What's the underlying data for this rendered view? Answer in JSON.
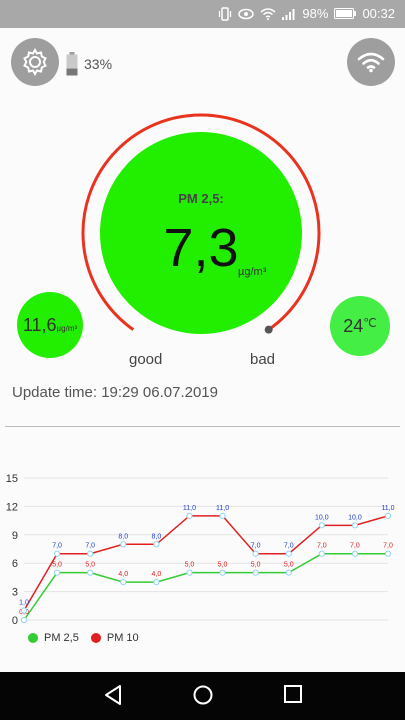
{
  "statusbar": {
    "battery": "98%",
    "time": "00:32"
  },
  "device": {
    "battery_percent": "33%",
    "battery_level": 0.33
  },
  "gauge": {
    "title": "PM 2,5:",
    "value": "7,3",
    "unit": "µg/m³",
    "good_label": "good",
    "bad_label": "bad",
    "main_color": "#22ee00",
    "arc_color": "#e8331f"
  },
  "pm10": {
    "value": "11,6",
    "unit": "µg/m³",
    "color": "#22ee00"
  },
  "temperature": {
    "value": "24",
    "unit": "℃",
    "color": "#44ee44"
  },
  "update": {
    "text": "Update time: 19:29 06.07.2019"
  },
  "chart_data": {
    "type": "line",
    "x": [
      0,
      1,
      2,
      3,
      4,
      5,
      6,
      7,
      8,
      9,
      10,
      11
    ],
    "ylim": [
      0,
      15
    ],
    "yticks": [
      "0",
      "3",
      "6",
      "9",
      "12",
      "15"
    ],
    "grid": true,
    "legend_position": "bottom-left",
    "series": [
      {
        "name": "PM 2,5",
        "color": "#33cc33",
        "values": [
          0,
          5,
          5,
          4,
          4,
          5,
          5,
          5,
          5,
          7,
          7,
          7
        ],
        "labels": [
          "0,0",
          "5,0",
          "5,0",
          "4,0",
          "4,0",
          "5,0",
          "5,0",
          "5,0",
          "5,0",
          "7,0",
          "7,0",
          "7,0"
        ],
        "label_color": "#e02020"
      },
      {
        "name": "PM 10",
        "color": "#e02020",
        "values": [
          1,
          7,
          7,
          8,
          8,
          11,
          11,
          7,
          7,
          10,
          10,
          11
        ],
        "labels": [
          "1,0",
          "7,0",
          "7,0",
          "8,0",
          "8,0",
          "11,0",
          "11,0",
          "7,0",
          "7,0",
          "10,0",
          "10,0",
          "11,0"
        ],
        "label_color": "#2040d0"
      }
    ]
  },
  "legend": {
    "pm25": "PM 2,5",
    "pm10": "PM 10"
  }
}
